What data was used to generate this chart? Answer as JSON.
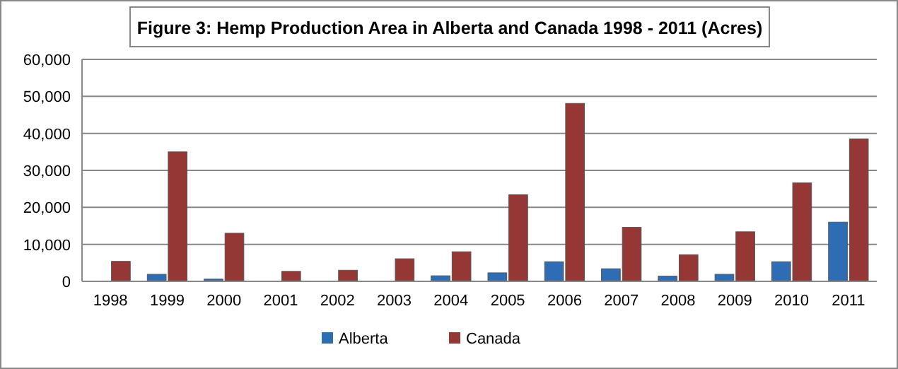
{
  "chart_data": {
    "type": "bar",
    "title": "Figure 3:  Hemp Production Area in Alberta and Canada 1998 - 2011 (Acres)",
    "categories": [
      "1998",
      "1999",
      "2000",
      "2001",
      "2002",
      "2003",
      "2004",
      "2005",
      "2006",
      "2007",
      "2008",
      "2009",
      "2010",
      "2011"
    ],
    "series": [
      {
        "name": "Alberta",
        "color": "#2e6db4",
        "values": [
          null,
          1900,
          600,
          null,
          null,
          null,
          1500,
          2300,
          5300,
          3400,
          1400,
          1900,
          5300,
          16000
        ]
      },
      {
        "name": "Canada",
        "color": "#953735",
        "values": [
          5400,
          35000,
          13000,
          2700,
          3000,
          6100,
          8000,
          23400,
          48100,
          14600,
          7200,
          13400,
          26600,
          38500
        ]
      }
    ],
    "ylim": [
      0,
      60000
    ],
    "yticks": [
      {
        "value": 0,
        "label": "0"
      },
      {
        "value": 10000,
        "label": "10,000"
      },
      {
        "value": 20000,
        "label": "20,000"
      },
      {
        "value": 30000,
        "label": "30,000"
      },
      {
        "value": 40000,
        "label": "40,000"
      },
      {
        "value": 50000,
        "label": "50,000"
      },
      {
        "value": 60000,
        "label": "60,000"
      }
    ],
    "grid": "y",
    "legend": "bottom"
  }
}
